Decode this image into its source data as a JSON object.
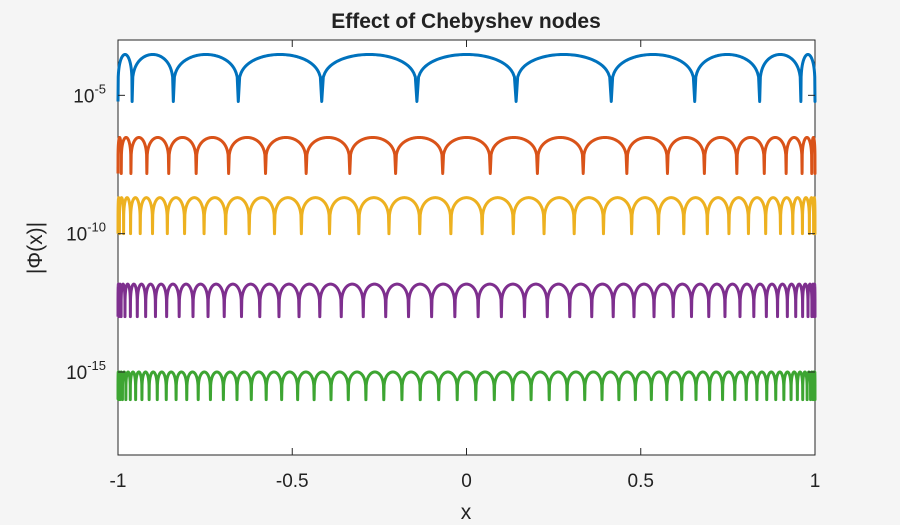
{
  "chart_data": {
    "type": "line",
    "title": "Effect of Chebyshev nodes",
    "xlabel": "x",
    "ylabel": "|Φ(x)|",
    "xlim": [
      -1,
      1
    ],
    "ylim": [
      1e-18,
      0.001
    ],
    "yscale": "log",
    "grid": false,
    "x_ticks": [
      {
        "value": -1,
        "label": "-1"
      },
      {
        "value": -0.5,
        "label": "-0.5"
      },
      {
        "value": 0,
        "label": "0"
      },
      {
        "value": 0.5,
        "label": "0.5"
      },
      {
        "value": 1,
        "label": "1"
      }
    ],
    "y_ticks": [
      {
        "value": 1e-05,
        "base": "10",
        "exponent": "-5"
      },
      {
        "value": 1e-10,
        "base": "10",
        "exponent": "-10"
      },
      {
        "value": 1e-15,
        "base": "10",
        "exponent": "-15"
      }
    ],
    "series": [
      {
        "nodes": 12,
        "peak": 0.0003,
        "floor": 6e-06,
        "color": "#0072BD"
      },
      {
        "nodes": 24,
        "peak": 3e-07,
        "floor": 1.5e-08,
        "color": "#D95319"
      },
      {
        "nodes": 36,
        "peak": 2e-09,
        "floor": 1e-10,
        "color": "#EDB120"
      },
      {
        "nodes": 48,
        "peak": 1.5e-12,
        "floor": 1e-13,
        "color": "#7E2F8E"
      },
      {
        "nodes": 60,
        "peak": 1e-15,
        "floor": 1e-16,
        "color": "#3DA532"
      }
    ]
  }
}
